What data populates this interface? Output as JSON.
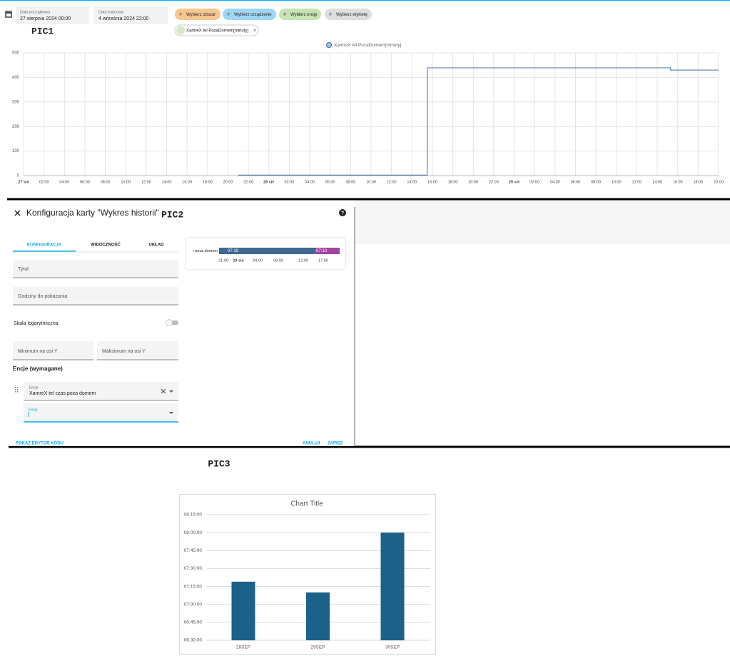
{
  "pic1": {
    "label": "PIC1",
    "start_label": "Data początkowa",
    "start_value": "27 sierpnia 2024 00:00",
    "end_label": "Data końcowa",
    "end_value": "4 września 2024 22:00",
    "filters": [
      "Wybierz obszar",
      "Wybierz urządzenie",
      "Wybierz encję",
      "Wybierz etykietę"
    ],
    "entity_chip": "XamreX tel PozaDomem[minuty]",
    "chart": {
      "type": "line",
      "x": [
        21,
        39.5,
        39.5,
        63.3,
        63.3,
        68
      ],
      "series": [
        {
          "name": "XamreX tel PozaDomem[minuty]",
          "color": "#3d6fa8",
          "values": [
            2,
            2,
            439,
            439,
            430,
            430
          ]
        }
      ],
      "xlim": [
        0,
        68
      ],
      "xticks": [
        {
          "value": 0,
          "label": "27 sie"
        },
        {
          "value": 2,
          "label": "02:00"
        },
        {
          "value": 4,
          "label": "04:00"
        },
        {
          "value": 6,
          "label": "06:00"
        },
        {
          "value": 8,
          "label": "08:00"
        },
        {
          "value": 10,
          "label": "10:00"
        },
        {
          "value": 12,
          "label": "12:00"
        },
        {
          "value": 14,
          "label": "14:00"
        },
        {
          "value": 16,
          "label": "16:00"
        },
        {
          "value": 18,
          "label": "18:00"
        },
        {
          "value": 20,
          "label": "20:00"
        },
        {
          "value": 22,
          "label": "22:00"
        },
        {
          "value": 24,
          "label": "28 sie"
        },
        {
          "value": 26,
          "label": "02:00"
        },
        {
          "value": 28,
          "label": "04:00"
        },
        {
          "value": 30,
          "label": "06:00"
        },
        {
          "value": 32,
          "label": "08:00"
        },
        {
          "value": 34,
          "label": "10:00"
        },
        {
          "value": 36,
          "label": "12:00"
        },
        {
          "value": 38,
          "label": "14:00"
        },
        {
          "value": 40,
          "label": "16:00"
        },
        {
          "value": 42,
          "label": "18:00"
        },
        {
          "value": 44,
          "label": "20:00"
        },
        {
          "value": 46,
          "label": "22:00"
        },
        {
          "value": 48,
          "label": "29 sie"
        },
        {
          "value": 50,
          "label": "02:00"
        },
        {
          "value": 52,
          "label": "04:00"
        },
        {
          "value": 54,
          "label": "06:00"
        },
        {
          "value": 56,
          "label": "08:00"
        },
        {
          "value": 58,
          "label": "10:00"
        },
        {
          "value": 60,
          "label": "12:00"
        },
        {
          "value": 62,
          "label": "14:00"
        },
        {
          "value": 64,
          "label": "16:00"
        },
        {
          "value": 66,
          "label": "18:00"
        },
        {
          "value": 68,
          "label": "20:00"
        }
      ],
      "ylim": [
        0,
        500
      ],
      "yticks": [
        0,
        100,
        200,
        300,
        400,
        500
      ],
      "grid": true
    }
  },
  "pic2": {
    "label": "PIC2",
    "title": "Konfiguracja karty \"Wykres historii\"",
    "tabs": [
      "KONFIGURACJA",
      "WIDOCZNOŚĆ",
      "UKŁAD"
    ],
    "fields": {
      "title": "Tytuł",
      "hours": "Godziny do pokazania",
      "log_scale": "Skala logarytmiczna",
      "min_y": "Minimum na osi Y",
      "max_y": "Maksimum na osi Y"
    },
    "entities_heading": "Encje (wymagane)",
    "entity_label": "Encja",
    "entity_value": "XamreX tel czas poza domem",
    "new_entity_label": "Encja",
    "preview": {
      "entity": "i poza domem",
      "segments": [
        "07:19",
        "07:10"
      ],
      "ticks": [
        "21:00",
        "29 sie",
        "04:00",
        "08:00",
        "13:00",
        "17:00"
      ]
    },
    "buttons": {
      "code_editor": "POKAŻ EDYTOR KODU",
      "cancel": "ANULUJ",
      "save": "ZAPISZ"
    }
  },
  "pic3": {
    "label": "PIC3",
    "chart": {
      "type": "bar",
      "title": "Chart Title",
      "categories": [
        "28SEP",
        "29SEP",
        "30SEP"
      ],
      "values": [
        439,
        430,
        480
      ],
      "color": "#1b6189",
      "ylim": [
        390,
        495
      ],
      "yticks": [
        {
          "value": 390,
          "label": "06:30:00"
        },
        {
          "value": 405,
          "label": "06:45:00"
        },
        {
          "value": 420,
          "label": "07:00:00"
        },
        {
          "value": 435,
          "label": "07:15:00"
        },
        {
          "value": 450,
          "label": "07:30:00"
        },
        {
          "value": 465,
          "label": "07:45:00"
        },
        {
          "value": 480,
          "label": "08:00:00"
        },
        {
          "value": 495,
          "label": "08:15:00"
        }
      ],
      "grid": true
    }
  }
}
